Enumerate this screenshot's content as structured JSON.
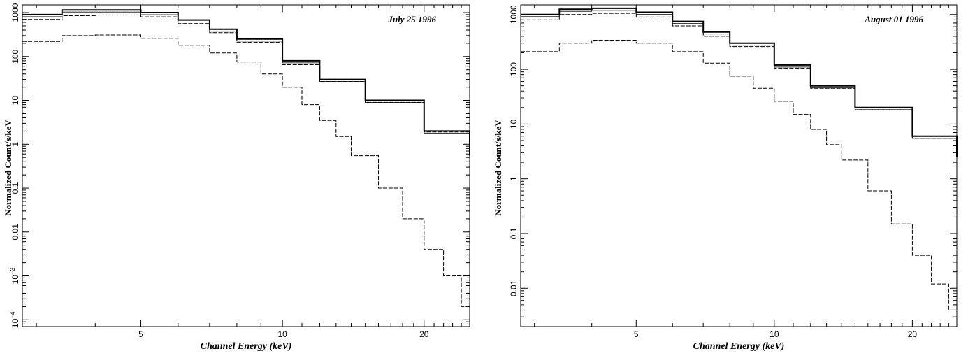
{
  "chart_data": [
    {
      "type": "line",
      "step": true,
      "annotation": "July 25 1996",
      "xlabel": "Channel Energy (keV)",
      "ylabel": "Normalized Count/s/keV",
      "x_scale": "log",
      "y_scale": "log",
      "xlim": [
        2.8,
        25
      ],
      "ylim": [
        7e-05,
        1500
      ],
      "x_ticks": [
        {
          "value": 5,
          "label": "5"
        },
        {
          "value": 10,
          "label": "10"
        },
        {
          "value": 20,
          "label": "20"
        }
      ],
      "y_ticks": [
        {
          "value": 1000,
          "label": "1000",
          "exp": ""
        },
        {
          "value": 100,
          "label": "100",
          "exp": ""
        },
        {
          "value": 10,
          "label": "10",
          "exp": ""
        },
        {
          "value": 1,
          "label": "1",
          "exp": ""
        },
        {
          "value": 0.1,
          "label": "0.1",
          "exp": ""
        },
        {
          "value": 0.01,
          "label": "0.01",
          "exp": ""
        },
        {
          "value": 0.001,
          "label": "10",
          "exp": "−3"
        },
        {
          "value": 0.0001,
          "label": "10",
          "exp": "−4"
        }
      ],
      "series": [
        {
          "x": [
            2.8,
            3.4,
            4.0,
            5.0,
            6.0,
            7.0,
            8.0,
            10.0,
            12.0,
            15.0,
            20.0,
            25.0
          ],
          "y": [
            900,
            1150,
            1150,
            1000,
            680,
            420,
            250,
            80,
            30,
            10,
            2.0,
            0.55
          ]
        },
        {
          "x": [
            2.8,
            3.4,
            4.0,
            5.0,
            6.0,
            7.0,
            8.0,
            10.0,
            12.0,
            15.0,
            20.0,
            25.0
          ],
          "y": [
            700,
            850,
            880,
            800,
            560,
            350,
            210,
            65,
            27,
            9,
            1.9,
            0.55
          ]
        },
        {
          "x": [
            2.8,
            3.4,
            4.0,
            5.0,
            6.0,
            7.0,
            8.0,
            9.0,
            10.0,
            11.0,
            12.0,
            13.0,
            14.0,
            16.0,
            18.0,
            20.0,
            22.0,
            24.0,
            25.0
          ],
          "y": [
            220,
            300,
            310,
            260,
            180,
            120,
            75,
            40,
            20,
            8,
            3.5,
            1.5,
            0.55,
            0.1,
            0.02,
            0.004,
            0.001,
            0.0002,
            0.0001
          ]
        }
      ]
    },
    {
      "type": "line",
      "step": true,
      "annotation": "August 01 1996",
      "xlabel": "Channel Energy (keV)",
      "ylabel": "Normalized Count/s/keV",
      "x_scale": "log",
      "y_scale": "log",
      "xlim": [
        2.8,
        25
      ],
      "ylim": [
        0.002,
        1500
      ],
      "x_ticks": [
        {
          "value": 5,
          "label": "5"
        },
        {
          "value": 10,
          "label": "10"
        },
        {
          "value": 20,
          "label": "20"
        }
      ],
      "y_ticks": [
        {
          "value": 1000,
          "label": "1000",
          "exp": ""
        },
        {
          "value": 100,
          "label": "100",
          "exp": ""
        },
        {
          "value": 10,
          "label": "10",
          "exp": ""
        },
        {
          "value": 1,
          "label": "1",
          "exp": ""
        },
        {
          "value": 0.1,
          "label": "0.1",
          "exp": ""
        },
        {
          "value": 0.01,
          "label": "0.01",
          "exp": ""
        }
      ],
      "series": [
        {
          "x": [
            2.8,
            3.4,
            4.0,
            5.0,
            6.0,
            7.0,
            8.0,
            10.0,
            12.0,
            15.0,
            20.0,
            25.0
          ],
          "y": [
            1000,
            1250,
            1300,
            1100,
            750,
            480,
            300,
            120,
            50,
            20,
            6,
            2.5
          ]
        },
        {
          "x": [
            2.8,
            3.4,
            4.0,
            5.0,
            6.0,
            7.0,
            8.0,
            10.0,
            12.0,
            15.0,
            20.0,
            25.0
          ],
          "y": [
            800,
            1000,
            1050,
            900,
            620,
            400,
            260,
            105,
            45,
            18,
            5.5,
            2.5
          ]
        },
        {
          "x": [
            2.8,
            3.4,
            4.0,
            5.0,
            6.0,
            7.0,
            8.0,
            9.0,
            10.0,
            11.0,
            12.0,
            13.0,
            14.0,
            16.0,
            18.0,
            20.0,
            22.0,
            24.0,
            25.0
          ],
          "y": [
            210,
            300,
            340,
            300,
            210,
            130,
            75,
            45,
            26,
            15,
            8,
            4.2,
            2.2,
            0.6,
            0.15,
            0.04,
            0.012,
            0.004,
            0.0027
          ]
        }
      ]
    }
  ]
}
